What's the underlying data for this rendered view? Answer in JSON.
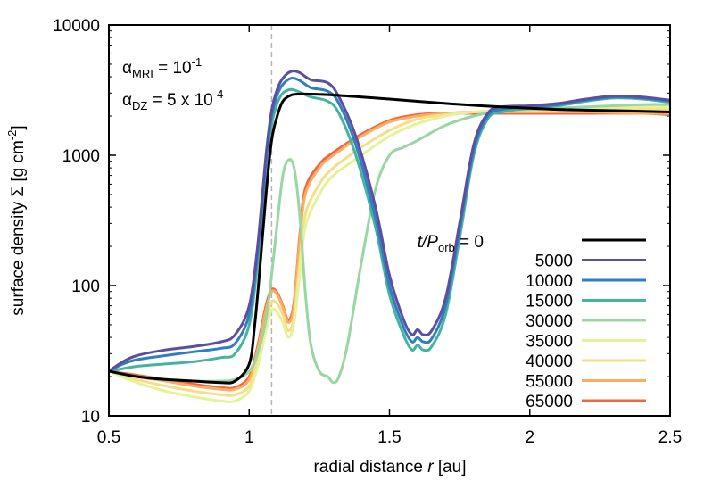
{
  "chart_data": {
    "type": "line",
    "xlabel_pre": "radial distance ",
    "xlabel_var": "r",
    "xlabel_post": " [au]",
    "ylabel_pre": "surface density Σ [g cm",
    "ylabel_sup": "-2",
    "ylabel_post": "]",
    "xlim": [
      0.5,
      2.5
    ],
    "ylim": [
      10,
      10000
    ],
    "yscale": "log",
    "x_ticks": [
      "0.5",
      "1",
      "1.5",
      "2",
      "2.5"
    ],
    "y_ticks": [
      "10",
      "100",
      "1000",
      "10000"
    ],
    "vline_x": 1.08,
    "annotation": {
      "line1_sym": "α",
      "line1_sub": "MRI",
      "line1_text": " = 10",
      "line1_sup": "-1",
      "line2_sym": "α",
      "line2_sub": "DZ",
      "line2_text": " = 5 x 10",
      "line2_sup": "-4"
    },
    "legend_title_var": "t/P",
    "legend_title_sub": "orb",
    "legend_title_post": " = 0",
    "legend_placement": "right",
    "series": [
      {
        "name": "0",
        "color": "#000000",
        "x": [
          0.5,
          0.6,
          0.7,
          0.8,
          0.9,
          0.95,
          1.0,
          1.02,
          1.04,
          1.06,
          1.08,
          1.1,
          1.12,
          1.15,
          1.18,
          1.2,
          1.3,
          1.5,
          1.7,
          1.9,
          2.1,
          2.3,
          2.5
        ],
        "y": [
          22,
          20,
          19,
          18.5,
          18,
          18.5,
          25,
          50,
          150,
          500,
          1300,
          2000,
          2600,
          2900,
          2950,
          2950,
          2900,
          2700,
          2500,
          2350,
          2250,
          2200,
          2150
        ]
      },
      {
        "name": "5000",
        "color": "#5b4ea3",
        "x": [
          0.5,
          0.55,
          0.6,
          0.7,
          0.8,
          0.9,
          0.95,
          1.0,
          1.03,
          1.06,
          1.08,
          1.1,
          1.12,
          1.15,
          1.18,
          1.22,
          1.28,
          1.32,
          1.38,
          1.45,
          1.5,
          1.55,
          1.58,
          1.6,
          1.62,
          1.65,
          1.7,
          1.75,
          1.8,
          1.85,
          1.9,
          2.0,
          2.1,
          2.2,
          2.3,
          2.4,
          2.5
        ],
        "y": [
          22,
          26,
          29,
          32,
          34,
          37,
          42,
          70,
          200,
          1000,
          2200,
          3200,
          3900,
          4400,
          4300,
          3800,
          3600,
          2800,
          1400,
          400,
          120,
          55,
          42,
          46,
          42,
          45,
          80,
          300,
          1200,
          2100,
          2350,
          2400,
          2500,
          2700,
          2850,
          2800,
          2650
        ]
      },
      {
        "name": "10000",
        "color": "#2f7fbd",
        "x": [
          0.5,
          0.55,
          0.6,
          0.7,
          0.8,
          0.9,
          0.95,
          1.0,
          1.03,
          1.06,
          1.08,
          1.1,
          1.12,
          1.15,
          1.18,
          1.22,
          1.28,
          1.32,
          1.38,
          1.45,
          1.5,
          1.55,
          1.58,
          1.6,
          1.62,
          1.65,
          1.7,
          1.75,
          1.8,
          1.85,
          1.9,
          2.0,
          2.1,
          2.2,
          2.3,
          2.4,
          2.5
        ],
        "y": [
          22,
          25,
          27,
          29,
          31,
          33,
          36,
          60,
          180,
          900,
          2000,
          2900,
          3500,
          3900,
          3750,
          3300,
          3100,
          2500,
          1200,
          330,
          100,
          48,
          37,
          40,
          37,
          39,
          70,
          270,
          1100,
          2000,
          2250,
          2350,
          2450,
          2650,
          2800,
          2750,
          2600
        ]
      },
      {
        "name": "15000",
        "color": "#48b2a0",
        "x": [
          0.5,
          0.55,
          0.6,
          0.7,
          0.8,
          0.9,
          0.95,
          1.0,
          1.03,
          1.06,
          1.08,
          1.1,
          1.12,
          1.15,
          1.18,
          1.22,
          1.28,
          1.32,
          1.38,
          1.45,
          1.5,
          1.55,
          1.58,
          1.6,
          1.62,
          1.65,
          1.7,
          1.75,
          1.8,
          1.85,
          1.9,
          2.0,
          2.1,
          2.2,
          2.3,
          2.4,
          2.5
        ],
        "y": [
          22,
          23,
          24,
          25,
          26,
          28,
          30,
          50,
          150,
          750,
          1700,
          2500,
          3000,
          3200,
          3050,
          2800,
          2600,
          2100,
          1000,
          280,
          85,
          42,
          32,
          35,
          32,
          34,
          60,
          230,
          1000,
          1900,
          2150,
          2300,
          2400,
          2600,
          2750,
          2700,
          2550
        ]
      },
      {
        "name": "30000",
        "color": "#98d6a2",
        "x": [
          0.5,
          0.6,
          0.7,
          0.8,
          0.9,
          0.95,
          1.0,
          1.03,
          1.06,
          1.08,
          1.1,
          1.12,
          1.14,
          1.16,
          1.18,
          1.2,
          1.22,
          1.25,
          1.28,
          1.3,
          1.32,
          1.35,
          1.4,
          1.45,
          1.5,
          1.55,
          1.6,
          1.7,
          1.8,
          1.9,
          2.0,
          2.2,
          2.4,
          2.5
        ],
        "y": [
          22,
          20,
          19,
          18.5,
          18.5,
          19,
          22,
          30,
          55,
          120,
          300,
          700,
          920,
          800,
          350,
          90,
          35,
          22,
          20,
          18,
          20,
          35,
          150,
          550,
          1000,
          1150,
          1300,
          1700,
          2000,
          2200,
          2250,
          2350,
          2450,
          2450
        ]
      },
      {
        "name": "35000",
        "color": "#e6f297",
        "x": [
          0.5,
          0.6,
          0.7,
          0.8,
          0.9,
          0.95,
          1.0,
          1.03,
          1.06,
          1.08,
          1.1,
          1.12,
          1.14,
          1.16,
          1.18,
          1.2,
          1.25,
          1.3,
          1.4,
          1.5,
          1.6,
          1.7,
          1.8,
          1.9,
          2.0,
          2.2,
          2.4,
          2.5
        ],
        "y": [
          22,
          18,
          15.5,
          14,
          13,
          13,
          15.5,
          24,
          45,
          65,
          62,
          52,
          40,
          52,
          120,
          280,
          500,
          700,
          1000,
          1400,
          1750,
          2000,
          2150,
          2200,
          2250,
          2300,
          2350,
          2350
        ]
      },
      {
        "name": "40000",
        "color": "#f6de86",
        "x": [
          0.5,
          0.6,
          0.7,
          0.8,
          0.9,
          0.95,
          1.0,
          1.03,
          1.06,
          1.08,
          1.1,
          1.12,
          1.14,
          1.16,
          1.18,
          1.2,
          1.25,
          1.3,
          1.4,
          1.5,
          1.6,
          1.7,
          1.8,
          1.9,
          2.0,
          2.2,
          2.4,
          2.5
        ],
        "y": [
          22,
          19,
          17,
          15.5,
          14.5,
          14.5,
          17,
          27,
          52,
          75,
          72,
          60,
          45,
          58,
          150,
          350,
          600,
          800,
          1150,
          1550,
          1900,
          2050,
          2150,
          2200,
          2200,
          2250,
          2250,
          2250
        ]
      },
      {
        "name": "55000",
        "color": "#fbae61",
        "x": [
          0.5,
          0.6,
          0.7,
          0.8,
          0.9,
          0.95,
          1.0,
          1.03,
          1.06,
          1.08,
          1.1,
          1.12,
          1.14,
          1.16,
          1.18,
          1.2,
          1.25,
          1.3,
          1.4,
          1.5,
          1.6,
          1.7,
          1.8,
          1.9,
          2.0,
          2.2,
          2.4,
          2.5
        ],
        "y": [
          22,
          20,
          18.5,
          17,
          16,
          16,
          19,
          32,
          65,
          90,
          85,
          68,
          52,
          70,
          220,
          500,
          800,
          1000,
          1400,
          1800,
          2000,
          2100,
          2150,
          2150,
          2150,
          2150,
          2100,
          2100
        ]
      },
      {
        "name": "65000",
        "color": "#ef6642",
        "x": [
          0.5,
          0.6,
          0.7,
          0.8,
          0.9,
          0.95,
          1.0,
          1.03,
          1.06,
          1.08,
          1.1,
          1.12,
          1.14,
          1.16,
          1.18,
          1.2,
          1.25,
          1.3,
          1.4,
          1.5,
          1.6,
          1.7,
          1.8,
          1.9,
          2.0,
          2.2,
          2.4,
          2.5
        ],
        "y": [
          22,
          20.5,
          19,
          17.5,
          16.5,
          16.5,
          20,
          34,
          70,
          93,
          88,
          70,
          54,
          75,
          240,
          550,
          850,
          1050,
          1450,
          1850,
          2050,
          2100,
          2100,
          2100,
          2100,
          2100,
          2100,
          2050
        ]
      }
    ]
  }
}
